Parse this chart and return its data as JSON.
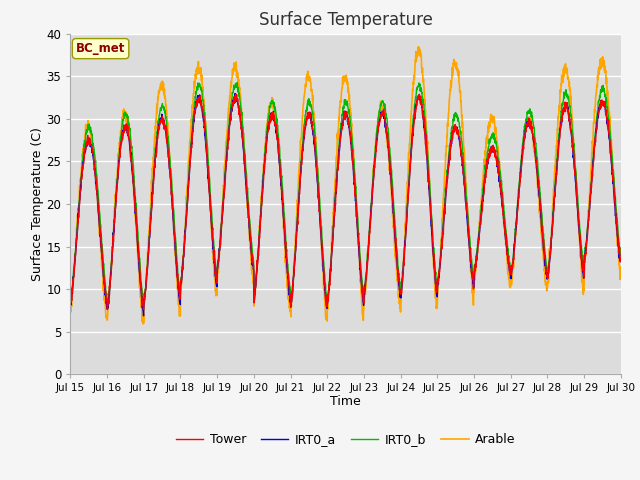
{
  "title": "Surface Temperature",
  "xlabel": "Time",
  "ylabel": "Surface Temperature (C)",
  "ylim": [
    0,
    40
  ],
  "yticks": [
    0,
    5,
    10,
    15,
    20,
    25,
    30,
    35,
    40
  ],
  "xtick_labels": [
    "Jul 15",
    "Jul 16",
    "Jul 17",
    "Jul 18",
    "Jul 19",
    "Jul 20",
    "Jul 21",
    "Jul 22",
    "Jul 23",
    "Jul 24",
    "Jul 25",
    "Jul 26",
    "Jul 27",
    "Jul 28",
    "Jul 29",
    "Jul 30"
  ],
  "annotation": "BC_met",
  "series": {
    "Tower": {
      "color": "#FF0000",
      "lw": 1.0
    },
    "IRT0_a": {
      "color": "#0000DD",
      "lw": 1.0
    },
    "IRT0_b": {
      "color": "#00BB00",
      "lw": 1.0
    },
    "Arable": {
      "color": "#FFA500",
      "lw": 1.2
    }
  },
  "plot_bg_color": "#DCDCDC",
  "fig_bg_color": "#F5F5F5",
  "grid_color": "#FFFFFF",
  "n_days": 15,
  "points_per_day": 144,
  "day_mins": [
    8.5,
    7.5,
    8.5,
    10.5,
    12.5,
    9.0,
    8.0,
    8.5,
    9.5,
    9.5,
    10.5,
    12.0,
    11.5,
    11.5,
    13.5
  ],
  "day_maxs_tower": [
    27.5,
    29.0,
    30.0,
    32.5,
    32.5,
    30.5,
    30.5,
    30.5,
    30.5,
    32.5,
    29.0,
    26.5,
    29.5,
    31.5,
    32.0
  ],
  "day_maxs_arable": [
    29.0,
    30.5,
    34.0,
    36.0,
    36.0,
    32.0,
    35.0,
    35.0,
    31.0,
    38.0,
    36.5,
    30.0,
    30.0,
    36.0,
    37.0
  ],
  "legend_order": [
    "Tower",
    "IRT0_a",
    "IRT0_b",
    "Arable"
  ]
}
